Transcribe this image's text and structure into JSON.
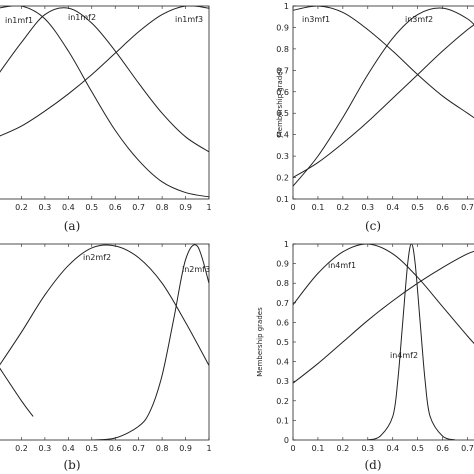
{
  "chart_data": [
    {
      "id": "a",
      "type": "line",
      "caption": "(a)",
      "ylabel": "",
      "xlim": [
        0.1,
        1
      ],
      "ylim": [
        0.1,
        1
      ],
      "xticks": [
        "0.2",
        "0.3",
        "0.4",
        "0.5",
        "0.6",
        "0.7",
        "0.8",
        "0.9",
        "1"
      ],
      "yticks": [],
      "series": [
        {
          "name": "in1mf1",
          "x": [
            0.1,
            0.2,
            0.3,
            0.4,
            0.5,
            0.6,
            0.7,
            0.8,
            0.9,
            1
          ],
          "y": [
            0.99,
            1.0,
            0.94,
            0.79,
            0.6,
            0.42,
            0.28,
            0.18,
            0.13,
            0.11
          ]
        },
        {
          "name": "in1mf2",
          "x": [
            0.1,
            0.2,
            0.3,
            0.4,
            0.5,
            0.6,
            0.7,
            0.8,
            0.9,
            1
          ],
          "y": [
            0.68,
            0.83,
            0.96,
            0.99,
            0.92,
            0.79,
            0.64,
            0.5,
            0.39,
            0.32
          ]
        },
        {
          "name": "in1mf3",
          "x": [
            0.1,
            0.2,
            0.3,
            0.4,
            0.5,
            0.6,
            0.7,
            0.8,
            0.9,
            1
          ],
          "y": [
            0.39,
            0.44,
            0.51,
            0.59,
            0.68,
            0.78,
            0.88,
            0.96,
            1.0,
            0.99
          ]
        }
      ]
    },
    {
      "id": "c",
      "type": "line",
      "caption": "(c)",
      "ylabel": "Membership grades",
      "xlim": [
        0,
        0.75
      ],
      "ylim": [
        0.1,
        1
      ],
      "xticks": [
        "0",
        "0.1",
        "0.2",
        "0.3",
        "0.4",
        "0.5",
        "0.6",
        "0.7"
      ],
      "yticks": [
        "0.1",
        "0.2",
        "0.3",
        "0.4",
        "0.5",
        "0.6",
        "0.7",
        "0.8",
        "0.9",
        "1"
      ],
      "series": [
        {
          "name": "in3mf1",
          "x": [
            0,
            0.1,
            0.2,
            0.3,
            0.4,
            0.5,
            0.6,
            0.7,
            0.75
          ],
          "y": [
            0.98,
            1.0,
            0.97,
            0.89,
            0.79,
            0.68,
            0.58,
            0.5,
            0.46
          ]
        },
        {
          "name": "in3mf2",
          "x": [
            0,
            0.1,
            0.2,
            0.3,
            0.4,
            0.5,
            0.6,
            0.7,
            0.75
          ],
          "y": [
            0.16,
            0.3,
            0.48,
            0.68,
            0.85,
            0.96,
            0.99,
            0.94,
            0.88
          ]
        },
        {
          "name": "",
          "x": [
            0,
            0.1,
            0.2,
            0.3,
            0.4,
            0.5,
            0.6,
            0.7,
            0.75
          ],
          "y": [
            0.2,
            0.27,
            0.36,
            0.46,
            0.57,
            0.68,
            0.79,
            0.89,
            0.93
          ]
        }
      ]
    },
    {
      "id": "b",
      "type": "line",
      "caption": "(b)",
      "ylabel": "",
      "xlim": [
        0.1,
        1
      ],
      "ylim": [
        0,
        1
      ],
      "xticks": [
        "0.2",
        "0.3",
        "0.4",
        "0.5",
        "0.6",
        "0.7",
        "0.8",
        "0.9",
        "1"
      ],
      "yticks": [],
      "series": [
        {
          "name": "",
          "x": [
            0.1,
            0.2,
            0.25
          ],
          "y": [
            0.38,
            0.2,
            0.12
          ]
        },
        {
          "name": "in2mf2",
          "x": [
            0.1,
            0.2,
            0.3,
            0.4,
            0.5,
            0.6,
            0.7,
            0.8,
            0.9,
            1
          ],
          "y": [
            0.37,
            0.55,
            0.74,
            0.89,
            0.98,
            0.99,
            0.93,
            0.8,
            0.6,
            0.38
          ]
        },
        {
          "name": "in2mf3",
          "x": [
            0.5,
            0.6,
            0.7,
            0.75,
            0.8,
            0.85,
            0.9,
            0.95,
            1
          ],
          "y": [
            0.0,
            0.01,
            0.07,
            0.15,
            0.33,
            0.62,
            0.92,
            0.99,
            0.8
          ]
        }
      ]
    },
    {
      "id": "d",
      "type": "line",
      "caption": "(d)",
      "ylabel": "Membership grades",
      "xlim": [
        0,
        0.75
      ],
      "ylim": [
        0,
        1
      ],
      "xticks": [
        "0",
        "0.1",
        "0.2",
        "0.3",
        "0.4",
        "0.5",
        "0.6",
        "0.7"
      ],
      "yticks": [
        "0",
        "0.1",
        "0.2",
        "0.3",
        "0.4",
        "0.5",
        "0.6",
        "0.7",
        "0.8",
        "0.9",
        "1"
      ],
      "series": [
        {
          "name": "in4mf1",
          "x": [
            0,
            0.1,
            0.2,
            0.3,
            0.4,
            0.5,
            0.6,
            0.7,
            0.75
          ],
          "y": [
            0.69,
            0.85,
            0.96,
            1.0,
            0.95,
            0.83,
            0.68,
            0.53,
            0.46
          ]
        },
        {
          "name": "in4mf2",
          "x": [
            0.3,
            0.35,
            0.4,
            0.42,
            0.44,
            0.46,
            0.475,
            0.49,
            0.51,
            0.53,
            0.55,
            0.6,
            0.65
          ],
          "y": [
            0.0,
            0.02,
            0.12,
            0.3,
            0.6,
            0.9,
            1.0,
            0.9,
            0.6,
            0.3,
            0.12,
            0.02,
            0.0
          ]
        },
        {
          "name": "",
          "x": [
            0,
            0.1,
            0.2,
            0.3,
            0.4,
            0.5,
            0.6,
            0.7,
            0.75
          ],
          "y": [
            0.29,
            0.39,
            0.5,
            0.61,
            0.71,
            0.8,
            0.88,
            0.95,
            0.97
          ]
        }
      ]
    }
  ]
}
